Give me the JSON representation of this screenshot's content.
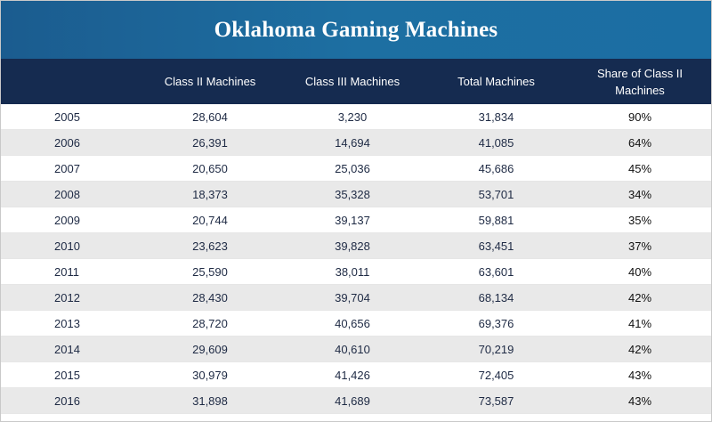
{
  "chart_data": {
    "type": "table",
    "title": "Oklahoma Gaming Machines",
    "columns": [
      "",
      "Class II Machines",
      "Class III Machines",
      "Total Machines",
      "Share of Class II Machines"
    ],
    "rows": [
      {
        "year": "2005",
        "class2": "28,604",
        "class3": "3,230",
        "total": "31,834",
        "share": "90%"
      },
      {
        "year": "2006",
        "class2": "26,391",
        "class3": "14,694",
        "total": "41,085",
        "share": "64%"
      },
      {
        "year": "2007",
        "class2": "20,650",
        "class3": "25,036",
        "total": "45,686",
        "share": "45%"
      },
      {
        "year": "2008",
        "class2": "18,373",
        "class3": "35,328",
        "total": "53,701",
        "share": "34%"
      },
      {
        "year": "2009",
        "class2": "20,744",
        "class3": "39,137",
        "total": "59,881",
        "share": "35%"
      },
      {
        "year": "2010",
        "class2": "23,623",
        "class3": "39,828",
        "total": "63,451",
        "share": "37%"
      },
      {
        "year": "2011",
        "class2": "25,590",
        "class3": "38,011",
        "total": "63,601",
        "share": "40%"
      },
      {
        "year": "2012",
        "class2": "28,430",
        "class3": "39,704",
        "total": "68,134",
        "share": "42%"
      },
      {
        "year": "2013",
        "class2": "28,720",
        "class3": "40,656",
        "total": "69,376",
        "share": "41%"
      },
      {
        "year": "2014",
        "class2": "29,609",
        "class3": "40,610",
        "total": "70,219",
        "share": "42%"
      },
      {
        "year": "2015",
        "class2": "30,979",
        "class3": "41,426",
        "total": "72,405",
        "share": "43%"
      },
      {
        "year": "2016",
        "class2": "31,898",
        "class3": "41,689",
        "total": "73,587",
        "share": "43%"
      }
    ]
  },
  "colors": {
    "title_bar": "#1d6fa2",
    "header_row": "#152b50",
    "alt_row": "#e9e9e9",
    "text": "#1e2a44"
  }
}
